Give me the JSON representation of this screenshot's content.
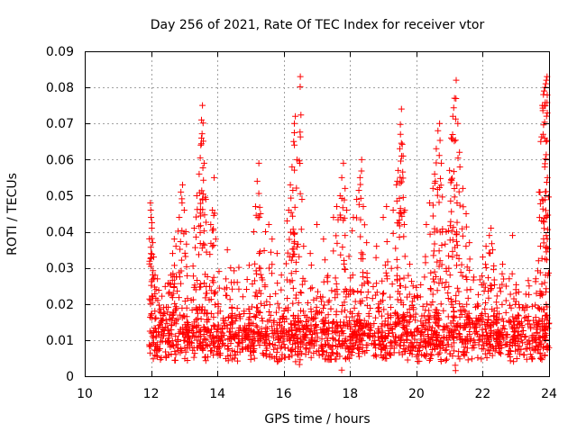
{
  "chart_data": {
    "type": "scatter",
    "title": "Day 256 of 2021, Rate Of TEC Index for receiver vtor",
    "xlabel": "GPS time / hours",
    "ylabel": "ROTI / TECUs",
    "xlim": [
      10,
      24
    ],
    "ylim": [
      0,
      0.09
    ],
    "x_ticks": [
      10,
      12,
      14,
      16,
      18,
      20,
      22,
      24
    ],
    "y_ticks": [
      0,
      0.01,
      0.02,
      0.03,
      0.04,
      0.05,
      0.06,
      0.07,
      0.08,
      0.09
    ],
    "x_tick_labels": [
      "10",
      "12",
      "14",
      "16",
      "18",
      "20",
      "22",
      "24"
    ],
    "y_tick_labels": [
      "0",
      "0.01",
      "0.02",
      "0.03",
      "0.04",
      "0.05",
      "0.06",
      "0.07",
      "0.08",
      "0.09"
    ],
    "grid": true,
    "marker": "+",
    "color": "#ff0000",
    "series": [
      {
        "name": "ROTI",
        "points": [
          [
            11.98,
            0.048
          ],
          [
            11.99,
            0.046
          ],
          [
            12.0,
            0.044
          ],
          [
            12.02,
            0.041
          ],
          [
            12.05,
            0.037
          ],
          [
            12.08,
            0.033
          ],
          [
            12.12,
            0.028
          ],
          [
            12.15,
            0.024
          ],
          [
            12.2,
            0.021
          ],
          [
            12.25,
            0.018
          ],
          [
            12.3,
            0.016
          ],
          [
            12.6,
            0.028
          ],
          [
            12.65,
            0.034
          ],
          [
            12.7,
            0.038
          ],
          [
            12.75,
            0.036
          ],
          [
            12.85,
            0.044
          ],
          [
            12.9,
            0.051
          ],
          [
            12.95,
            0.053
          ],
          [
            13.0,
            0.046
          ],
          [
            13.05,
            0.04
          ],
          [
            13.3,
            0.041
          ],
          [
            13.38,
            0.05
          ],
          [
            13.45,
            0.056
          ],
          [
            13.5,
            0.064
          ],
          [
            13.52,
            0.071
          ],
          [
            13.55,
            0.075
          ],
          [
            13.6,
            0.059
          ],
          [
            13.65,
            0.049
          ],
          [
            13.8,
            0.042
          ],
          [
            13.85,
            0.046
          ],
          [
            13.9,
            0.055
          ],
          [
            13.95,
            0.038
          ],
          [
            14.05,
            0.029
          ],
          [
            14.3,
            0.035
          ],
          [
            14.4,
            0.03
          ],
          [
            14.6,
            0.026
          ],
          [
            15.1,
            0.04
          ],
          [
            15.15,
            0.047
          ],
          [
            15.2,
            0.054
          ],
          [
            15.25,
            0.059
          ],
          [
            15.3,
            0.045
          ],
          [
            15.45,
            0.04
          ],
          [
            15.55,
            0.042
          ],
          [
            15.65,
            0.038
          ],
          [
            15.8,
            0.034
          ],
          [
            16.1,
            0.043
          ],
          [
            16.15,
            0.046
          ],
          [
            16.2,
            0.053
          ],
          [
            16.25,
            0.058
          ],
          [
            16.3,
            0.065
          ],
          [
            16.32,
            0.07
          ],
          [
            16.35,
            0.072
          ],
          [
            16.4,
            0.06
          ],
          [
            16.5,
            0.083
          ],
          [
            16.55,
            0.049
          ],
          [
            16.6,
            0.036
          ],
          [
            16.8,
            0.034
          ],
          [
            17.0,
            0.042
          ],
          [
            17.2,
            0.038
          ],
          [
            17.5,
            0.044
          ],
          [
            17.6,
            0.047
          ],
          [
            17.7,
            0.05
          ],
          [
            17.75,
            0.055
          ],
          [
            17.8,
            0.059
          ],
          [
            17.85,
            0.052
          ],
          [
            17.9,
            0.046
          ],
          [
            18.1,
            0.044
          ],
          [
            18.2,
            0.049
          ],
          [
            18.3,
            0.055
          ],
          [
            18.35,
            0.06
          ],
          [
            18.4,
            0.047
          ],
          [
            18.5,
            0.037
          ],
          [
            18.8,
            0.036
          ],
          [
            19.0,
            0.044
          ],
          [
            19.1,
            0.047
          ],
          [
            19.3,
            0.046
          ],
          [
            19.4,
            0.053
          ],
          [
            19.45,
            0.057
          ],
          [
            19.5,
            0.063
          ],
          [
            19.52,
            0.067
          ],
          [
            19.55,
            0.074
          ],
          [
            19.6,
            0.061
          ],
          [
            19.65,
            0.046
          ],
          [
            19.8,
            0.031
          ],
          [
            19.9,
            0.025
          ],
          [
            20.3,
            0.042
          ],
          [
            20.4,
            0.048
          ],
          [
            20.5,
            0.052
          ],
          [
            20.55,
            0.056
          ],
          [
            20.6,
            0.063
          ],
          [
            20.65,
            0.068
          ],
          [
            20.7,
            0.07
          ],
          [
            20.75,
            0.059
          ],
          [
            20.9,
            0.04
          ],
          [
            21.0,
            0.057
          ],
          [
            21.05,
            0.066
          ],
          [
            21.1,
            0.072
          ],
          [
            21.15,
            0.077
          ],
          [
            21.2,
            0.082
          ],
          [
            21.25,
            0.07
          ],
          [
            21.3,
            0.062
          ],
          [
            21.4,
            0.052
          ],
          [
            21.5,
            0.045
          ],
          [
            21.6,
            0.037
          ],
          [
            22.0,
            0.033
          ],
          [
            22.1,
            0.036
          ],
          [
            22.2,
            0.039
          ],
          [
            22.25,
            0.041
          ],
          [
            22.3,
            0.035
          ],
          [
            22.6,
            0.031
          ],
          [
            22.8,
            0.027
          ],
          [
            22.9,
            0.039
          ],
          [
            23.0,
            0.024
          ],
          [
            23.4,
            0.025
          ],
          [
            23.6,
            0.027
          ],
          [
            23.7,
            0.051
          ],
          [
            23.75,
            0.065
          ],
          [
            23.8,
            0.075
          ],
          [
            23.83,
            0.078
          ],
          [
            23.85,
            0.079
          ],
          [
            23.88,
            0.08
          ],
          [
            23.9,
            0.081
          ],
          [
            23.92,
            0.082
          ],
          [
            23.94,
            0.083
          ],
          [
            23.95,
            0.055
          ]
        ]
      }
    ],
    "dense_band": {
      "x_range": [
        11.95,
        24.0
      ],
      "y_min": 0.004,
      "y_center": 0.011,
      "y_spread": 0.007,
      "count": 1800
    }
  }
}
